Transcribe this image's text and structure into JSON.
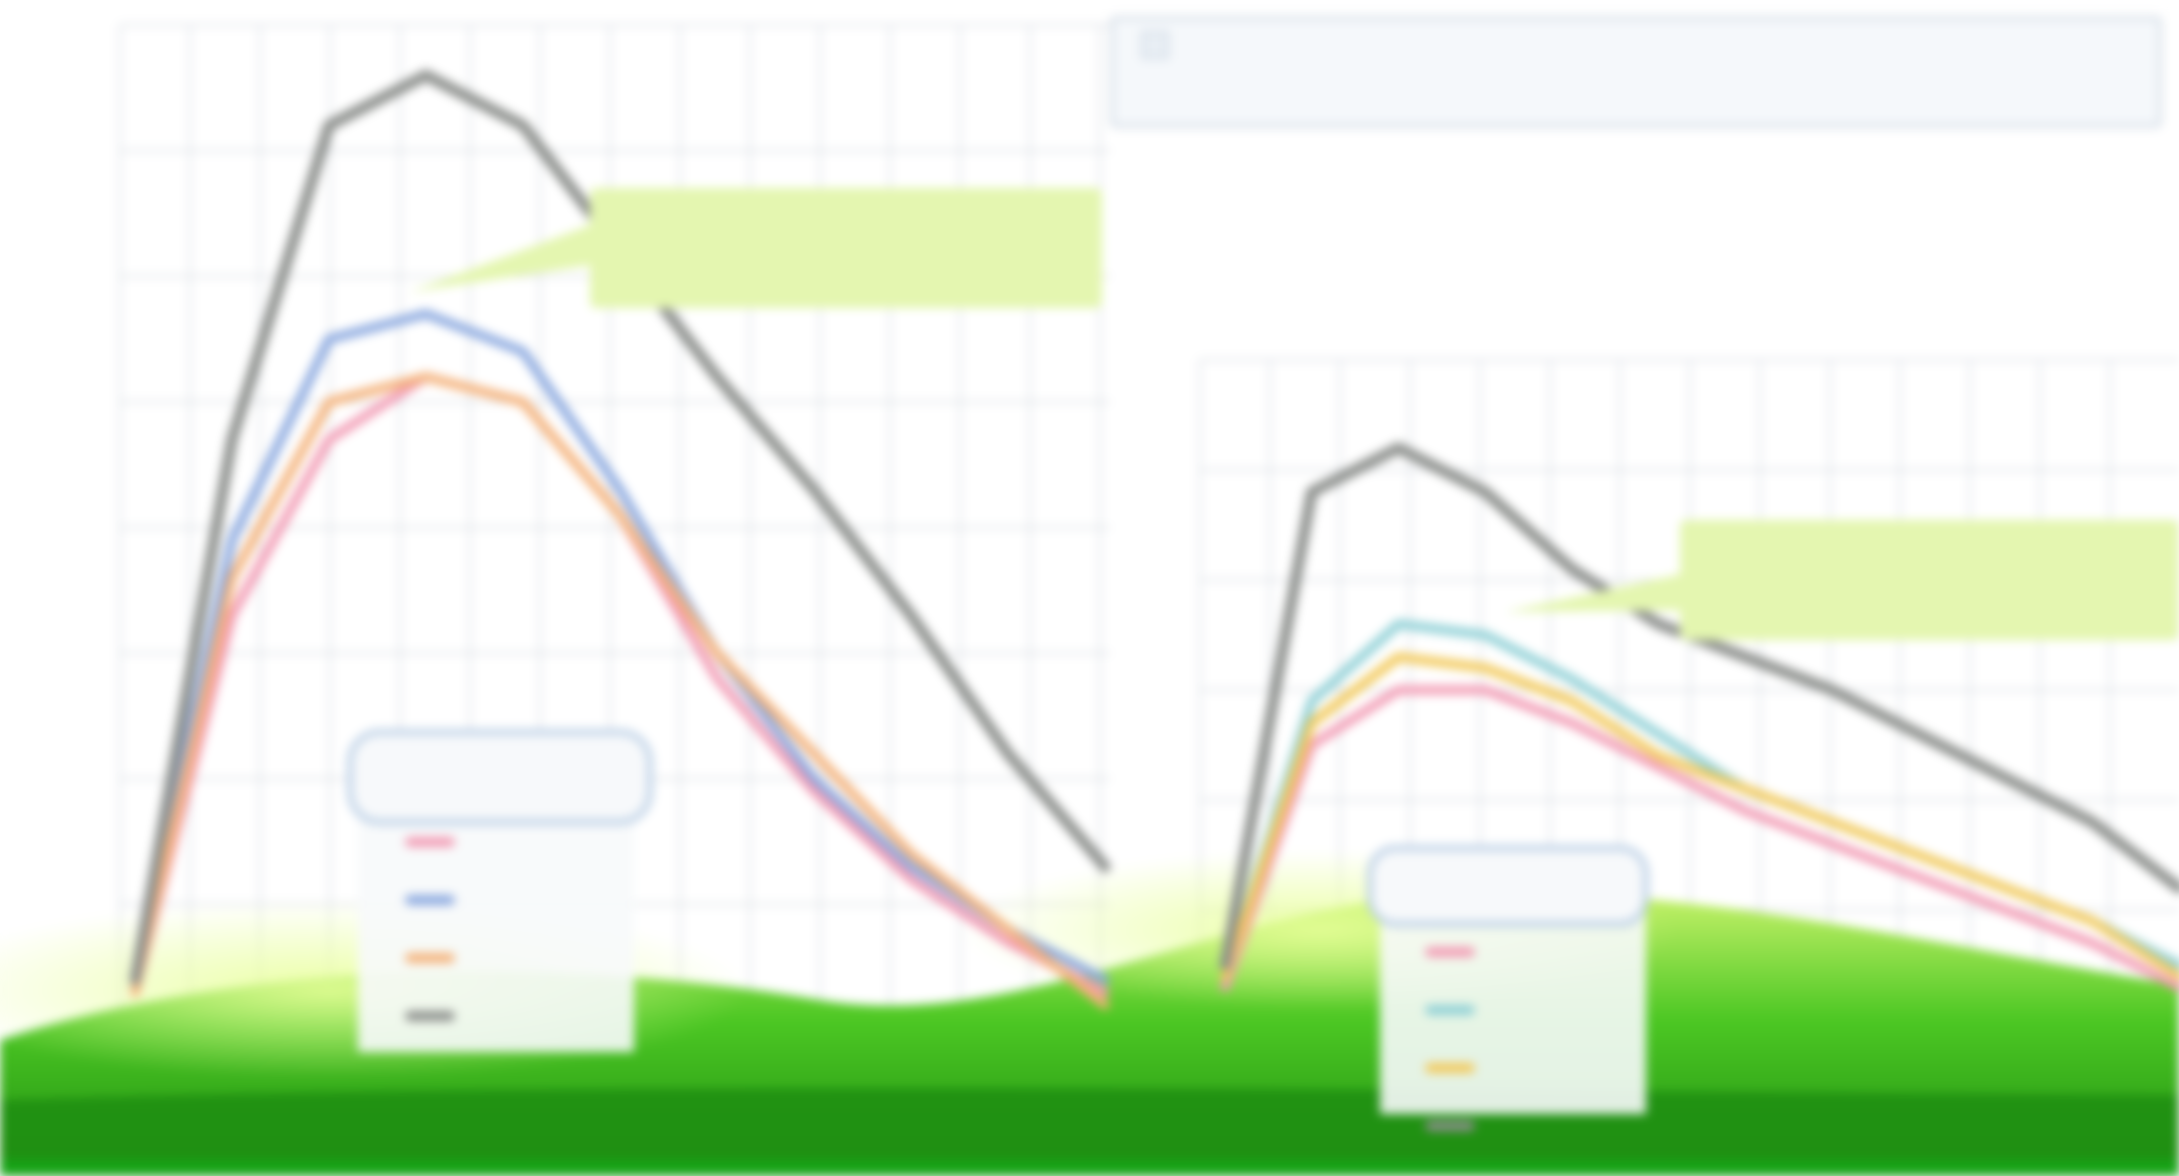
{
  "colors": {
    "grid": "#d9dde3",
    "tick_text": "#8a8f96",
    "ground_light": "#c7f26a",
    "ground_mid": "#4cc723",
    "ground_dark": "#1f8f12",
    "bottom_band": "#16a316",
    "callout_fill": "#e4f6b0",
    "callout_text": "#8fa56b",
    "info_fill": "#f5f8fb",
    "info_border": "#c9d4e0",
    "info_text": "#8d97a3",
    "legend_fill": "#f7f9fb",
    "legend_border": "#bcd0e6"
  },
  "info_box": {
    "line1": "",
    "line2": ""
  },
  "chart_data": [
    {
      "type": "line",
      "title": "",
      "subtitle": "",
      "peak_label": "",
      "xlabel": "",
      "ylabel": "",
      "ylim": [
        0,
        8
      ],
      "y_ticks": [
        "",
        "",
        "",
        "",
        "",
        "",
        "",
        ""
      ],
      "grid": true,
      "legend_position": "bottom-center",
      "legend_title": "",
      "callout": {
        "line1": "",
        "line2": ""
      },
      "x": [
        0,
        1,
        2,
        3,
        4,
        5,
        6,
        7,
        8,
        9,
        10
      ],
      "series": [
        {
          "color": "#f29bb4",
          "legend_label": "",
          "values": [
            0.3,
            3.3,
            4.7,
            5.2,
            5.0,
            4.1,
            2.8,
            1.9,
            1.2,
            0.7,
            0.3
          ]
        },
        {
          "color": "#8aa8df",
          "legend_label": "",
          "values": [
            0.4,
            3.9,
            5.5,
            5.7,
            5.4,
            4.3,
            3.0,
            2.0,
            1.3,
            0.8,
            0.4
          ]
        },
        {
          "color": "#f4b27a",
          "legend_label": "",
          "values": [
            0.3,
            3.6,
            5.0,
            5.2,
            5.0,
            4.1,
            3.0,
            2.2,
            1.4,
            0.8,
            0.2
          ]
        },
        {
          "color": "#8c8f8c",
          "legend_label": "",
          "values": [
            0.4,
            4.7,
            7.2,
            7.6,
            7.2,
            6.2,
            5.2,
            4.3,
            3.3,
            2.2,
            1.3
          ]
        }
      ]
    },
    {
      "type": "line",
      "title": "",
      "subtitle": "",
      "peak_label": "",
      "xlabel": "",
      "ylabel": "",
      "ylim": [
        0,
        6
      ],
      "y_ticks": [
        "",
        "",
        "",
        "",
        "",
        ""
      ],
      "grid": true,
      "legend_position": "bottom-center",
      "legend_title": "",
      "callout": {
        "line1": "",
        "line2": ""
      },
      "x": [
        0,
        1,
        2,
        3,
        4,
        5,
        6,
        7,
        8,
        9,
        10,
        11
      ],
      "series": [
        {
          "color": "#f29bb4",
          "legend_label": "",
          "values": [
            0.3,
            2.5,
            3.0,
            3.0,
            2.7,
            2.3,
            1.9,
            1.6,
            1.3,
            1.0,
            0.7,
            0.3
          ]
        },
        {
          "color": "#8fd0d6",
          "legend_label": "",
          "values": [
            0.4,
            2.9,
            3.6,
            3.5,
            3.1,
            2.6,
            2.1,
            1.8,
            1.5,
            1.2,
            0.9,
            0.5
          ]
        },
        {
          "color": "#f2c95a",
          "legend_label": "",
          "values": [
            0.4,
            2.7,
            3.3,
            3.2,
            2.9,
            2.4,
            2.1,
            1.8,
            1.5,
            1.2,
            0.9,
            0.4
          ]
        },
        {
          "color": "#8c8f8c",
          "legend_label": "",
          "values": [
            0.5,
            4.8,
            5.2,
            4.8,
            4.1,
            3.6,
            3.3,
            3.0,
            2.6,
            2.2,
            1.8,
            1.2
          ]
        }
      ]
    }
  ]
}
